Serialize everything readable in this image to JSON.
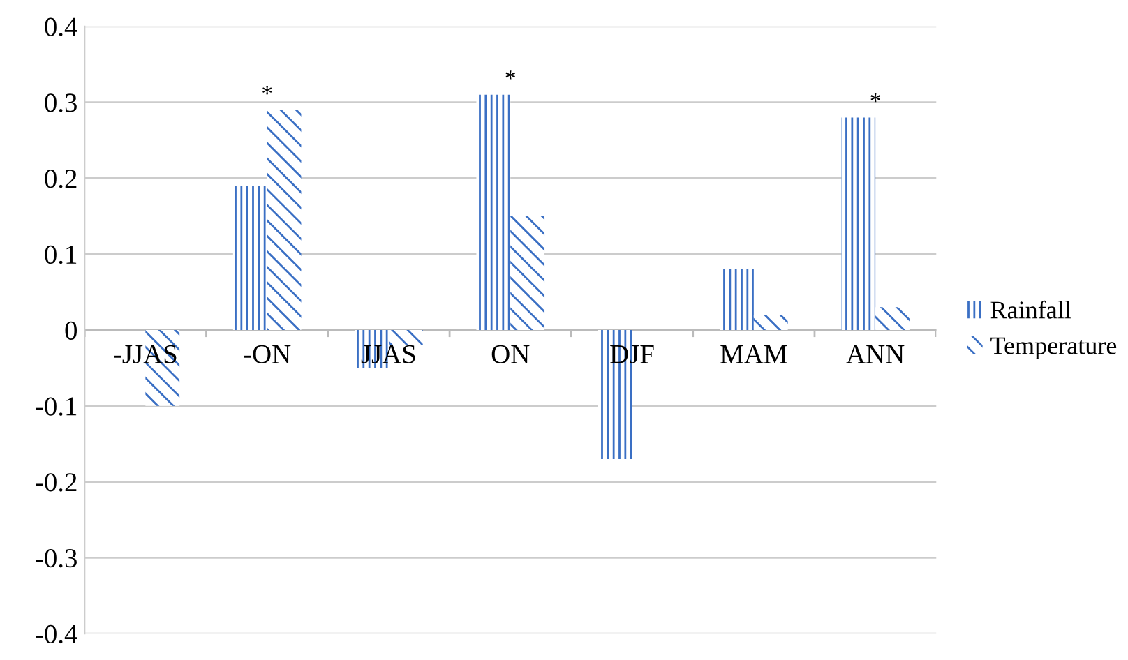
{
  "chart_data": {
    "type": "bar",
    "categories": [
      "-JJAS",
      "-ON",
      "JJAS",
      "ON",
      "DJF",
      "MAM",
      "ANN"
    ],
    "series": [
      {
        "name": "Rainfall",
        "color": "#3a6fc4",
        "values": [
          0,
          0.19,
          -0.05,
          0.31,
          -0.17,
          0.08,
          0.28
        ]
      },
      {
        "name": "Temperature",
        "color": "#3a6fc4",
        "values": [
          -0.1,
          0.29,
          -0.02,
          0.15,
          0.0,
          0.02,
          0.03
        ]
      }
    ],
    "ylim": [
      -0.4,
      0.4
    ],
    "yticks": [
      {
        "value": -0.4,
        "label": "-0.4"
      },
      {
        "value": -0.3,
        "label": "-0.3"
      },
      {
        "value": -0.2,
        "label": "-0.2"
      },
      {
        "value": -0.1,
        "label": "-0.1"
      },
      0,
      0.1,
      0.2,
      0.3,
      0.4
    ],
    "annotations": [
      {
        "text": "*",
        "x": "-ON",
        "y": 0.29
      },
      {
        "text": "*",
        "x": "ON",
        "y": 0.31
      },
      {
        "text": "*",
        "x": "ANN",
        "y": 0.28
      }
    ],
    "grid": "y",
    "legend": "right"
  }
}
